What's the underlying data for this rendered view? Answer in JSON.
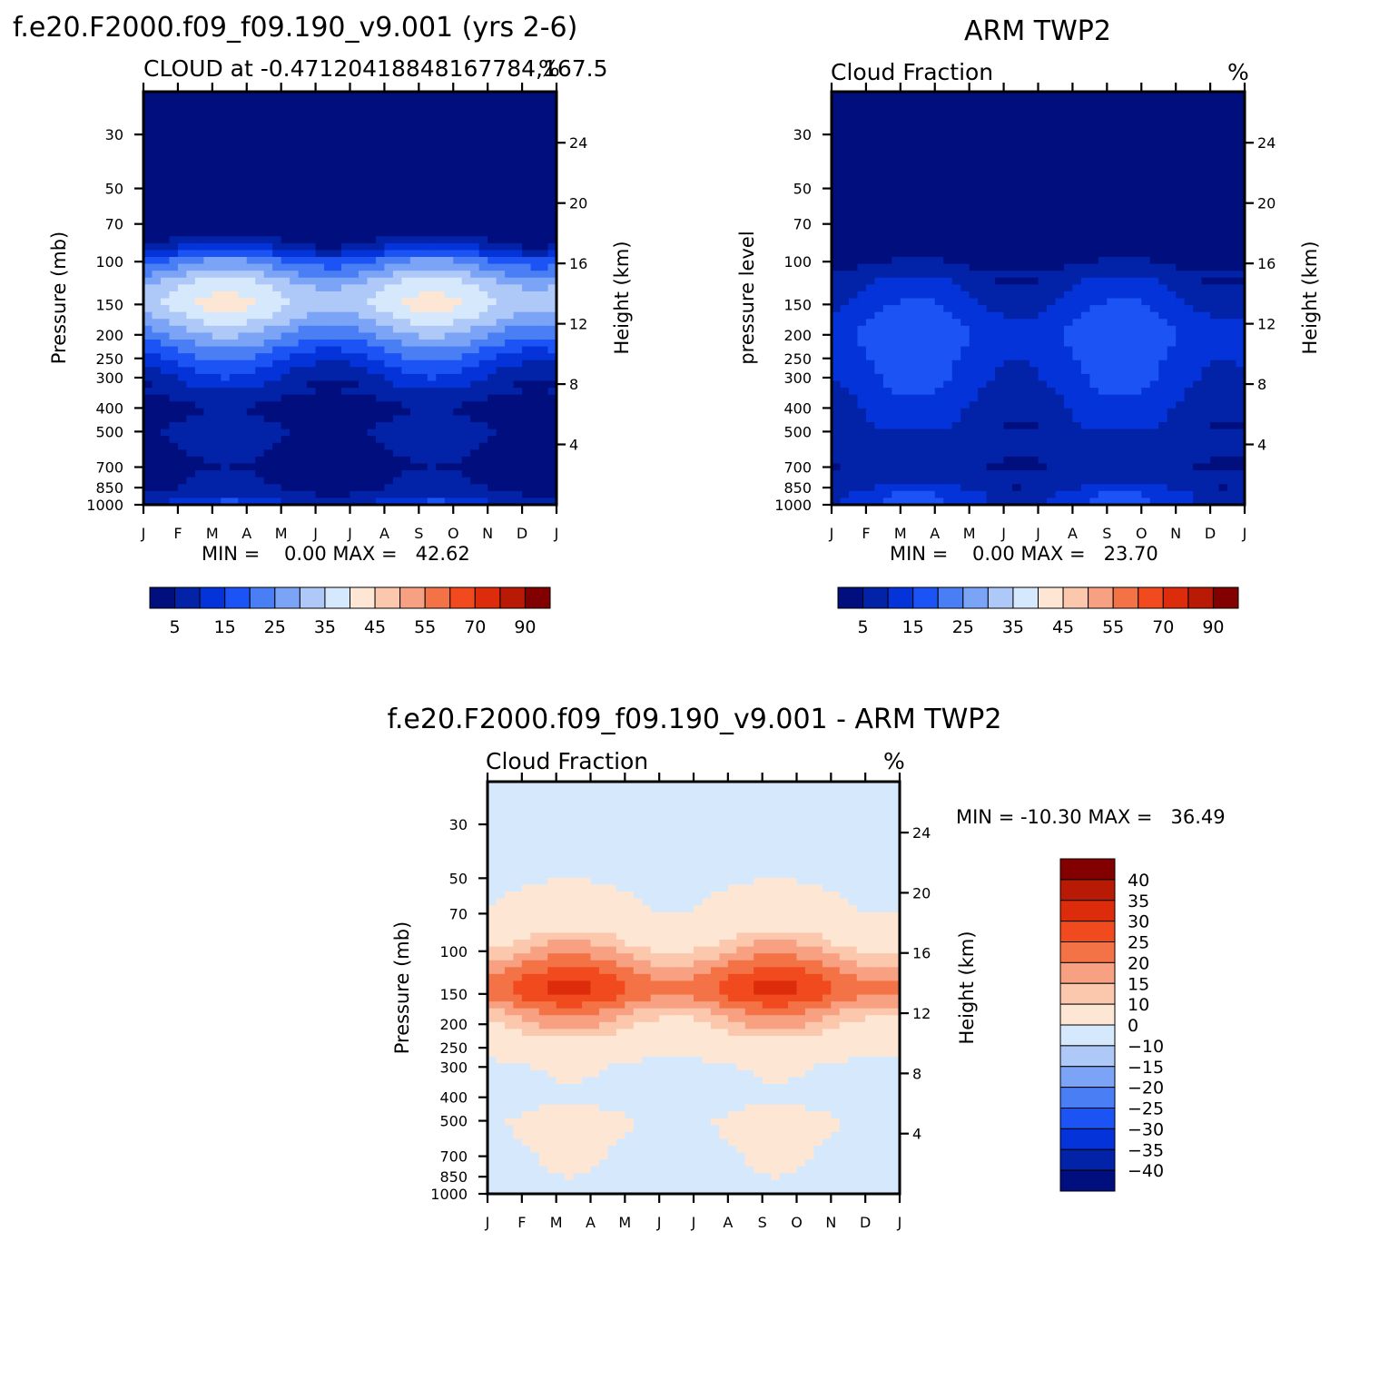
{
  "colors": {
    "model_scale": [
      "#000e7e",
      "#0222a8",
      "#0433d9",
      "#1c53f4",
      "#4a7ef5",
      "#7ba3f6",
      "#aec8f8",
      "#d6e8fb",
      "#fde7d4",
      "#fbc8ad",
      "#f8a182",
      "#f47346",
      "#f04a1e",
      "#dc2c0b",
      "#b81a05",
      "#820000"
    ],
    "diff_scale": [
      "#820000",
      "#b81a05",
      "#dc2c0b",
      "#f04a1e",
      "#f47346",
      "#f8a182",
      "#fbc8ad",
      "#fde7d4",
      "#d6e8fb",
      "#aec8f8",
      "#7ba3f6",
      "#4a7ef5",
      "#1c53f4",
      "#0433d9",
      "#0222a8",
      "#000e7e"
    ]
  },
  "chart_data": [
    {
      "type": "heatmap",
      "figure_title": "f.e20.F2000.f09_f09.190_v9.001 (yrs 2-6)",
      "subtitle_left": "CLOUD at -0.47120418848167784,167.5",
      "subtitle_right": "%",
      "ylabel": "Pressure (mb)",
      "y2label": "Height (km)",
      "x_ticks": [
        "J",
        "F",
        "M",
        "A",
        "M",
        "J",
        "J",
        "A",
        "S",
        "O",
        "N",
        "D",
        "J"
      ],
      "y_ticks": [
        "30",
        "50",
        "70",
        "100",
        "150",
        "200",
        "250",
        "300",
        "400",
        "500",
        "700",
        "850",
        "1000"
      ],
      "y2_ticks": [
        "24",
        "20",
        "16",
        "12",
        "8",
        "4"
      ],
      "stats": "MIN =    0.00 MAX =   42.62",
      "min": 0.0,
      "max": 42.62,
      "colorbar_labels": [
        "5",
        "15",
        "25",
        "35",
        "45",
        "55",
        "70",
        "90"
      ],
      "field_profile": [
        [
          30,
          0
        ],
        [
          50,
          0
        ],
        [
          70,
          1
        ],
        [
          80,
          4
        ],
        [
          90,
          12
        ],
        [
          100,
          22
        ],
        [
          125,
          34
        ],
        [
          150,
          37
        ],
        [
          175,
          32
        ],
        [
          200,
          26
        ],
        [
          250,
          16
        ],
        [
          300,
          10
        ],
        [
          400,
          3
        ],
        [
          500,
          6
        ],
        [
          700,
          3
        ],
        [
          850,
          5
        ],
        [
          950,
          8
        ],
        [
          1000,
          14
        ]
      ],
      "field_seasonal_amplitude": 5
    },
    {
      "type": "heatmap",
      "figure_title": "ARM TWP2",
      "subtitle_left": "Cloud Fraction",
      "subtitle_right": "%",
      "ylabel": "pressure level",
      "y2label": "Height (km)",
      "x_ticks": [
        "J",
        "F",
        "M",
        "A",
        "M",
        "J",
        "J",
        "A",
        "S",
        "O",
        "N",
        "D",
        "J"
      ],
      "y_ticks": [
        "30",
        "50",
        "70",
        "100",
        "150",
        "200",
        "250",
        "300",
        "400",
        "500",
        "700",
        "850",
        "1000"
      ],
      "y2_ticks": [
        "24",
        "20",
        "16",
        "12",
        "8",
        "4"
      ],
      "stats": "MIN =    0.00 MAX =   23.70",
      "min": 0.0,
      "max": 23.7,
      "colorbar_labels": [
        "5",
        "15",
        "25",
        "35",
        "45",
        "55",
        "70",
        "90"
      ],
      "field_profile": [
        [
          30,
          0
        ],
        [
          70,
          0.5
        ],
        [
          100,
          4
        ],
        [
          125,
          9
        ],
        [
          150,
          12
        ],
        [
          200,
          16
        ],
        [
          250,
          14
        ],
        [
          300,
          13
        ],
        [
          400,
          10
        ],
        [
          500,
          8
        ],
        [
          700,
          6
        ],
        [
          850,
          9
        ],
        [
          950,
          14
        ],
        [
          1000,
          10
        ]
      ],
      "field_seasonal_amplitude": 4
    },
    {
      "type": "heatmap",
      "figure_title": "f.e20.F2000.f09_f09.190_v9.001 - ARM TWP2",
      "subtitle_left": "Cloud Fraction",
      "subtitle_right": "%",
      "ylabel": "Pressure (mb)",
      "y2label": "Height (km)",
      "x_ticks": [
        "J",
        "F",
        "M",
        "A",
        "M",
        "J",
        "J",
        "A",
        "S",
        "O",
        "N",
        "D",
        "J"
      ],
      "y_ticks": [
        "30",
        "50",
        "70",
        "100",
        "150",
        "200",
        "250",
        "300",
        "400",
        "500",
        "700",
        "850",
        "1000"
      ],
      "y2_ticks": [
        "24",
        "20",
        "16",
        "12",
        "8",
        "4"
      ],
      "stats": "MIN = -10.30 MAX =   36.49",
      "min": -10.3,
      "max": 36.49,
      "colorbar_labels": [
        "40",
        "35",
        "30",
        "25",
        "20",
        "15",
        "10",
        "0",
        "-10",
        "-15",
        "-20",
        "-25",
        "-30",
        "-35",
        "-40"
      ],
      "field_profile": [
        [
          30,
          -3
        ],
        [
          50,
          -2
        ],
        [
          60,
          1
        ],
        [
          70,
          2
        ],
        [
          90,
          10
        ],
        [
          110,
          18
        ],
        [
          135,
          26
        ],
        [
          150,
          26
        ],
        [
          175,
          18
        ],
        [
          200,
          12
        ],
        [
          250,
          5
        ],
        [
          300,
          -1
        ],
        [
          400,
          -3
        ],
        [
          500,
          1
        ],
        [
          700,
          -1
        ],
        [
          850,
          -2
        ],
        [
          950,
          -4
        ],
        [
          1000,
          1
        ]
      ],
      "field_seasonal_amplitude": 5
    }
  ]
}
